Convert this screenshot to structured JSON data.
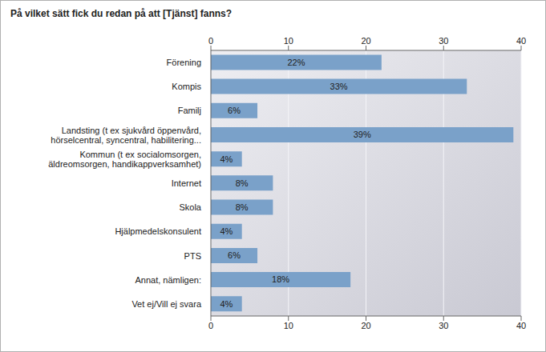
{
  "chart_data": {
    "type": "bar",
    "title": "På vilket sätt fick du redan på att [Tjänst] fanns?",
    "orientation": "horizontal",
    "categories": [
      "Förening",
      "Kompis",
      "Familj",
      "Landsting (t ex sjukvård öppenvård, hörselcentral, syncentral, habilitering...",
      "Kommun (t ex socialomsorgen, äldreomsorgen, handikappverksamhet)",
      "Internet",
      "Skola",
      "Hjälpmedelskonsulent",
      "PTS",
      "Annat, nämligen:",
      "Vet ej/Vill ej svara"
    ],
    "values": [
      22,
      33,
      6,
      39,
      4,
      8,
      8,
      4,
      6,
      18,
      4
    ],
    "value_labels": [
      "22%",
      "33%",
      "6%",
      "39%",
      "4%",
      "8%",
      "8%",
      "4%",
      "6%",
      "18%",
      "4%"
    ],
    "color": "#7aa1c9",
    "xlim": [
      0,
      40
    ],
    "xticks": [
      0,
      10,
      20,
      30,
      40
    ],
    "grid": true,
    "data_labels": true
  }
}
